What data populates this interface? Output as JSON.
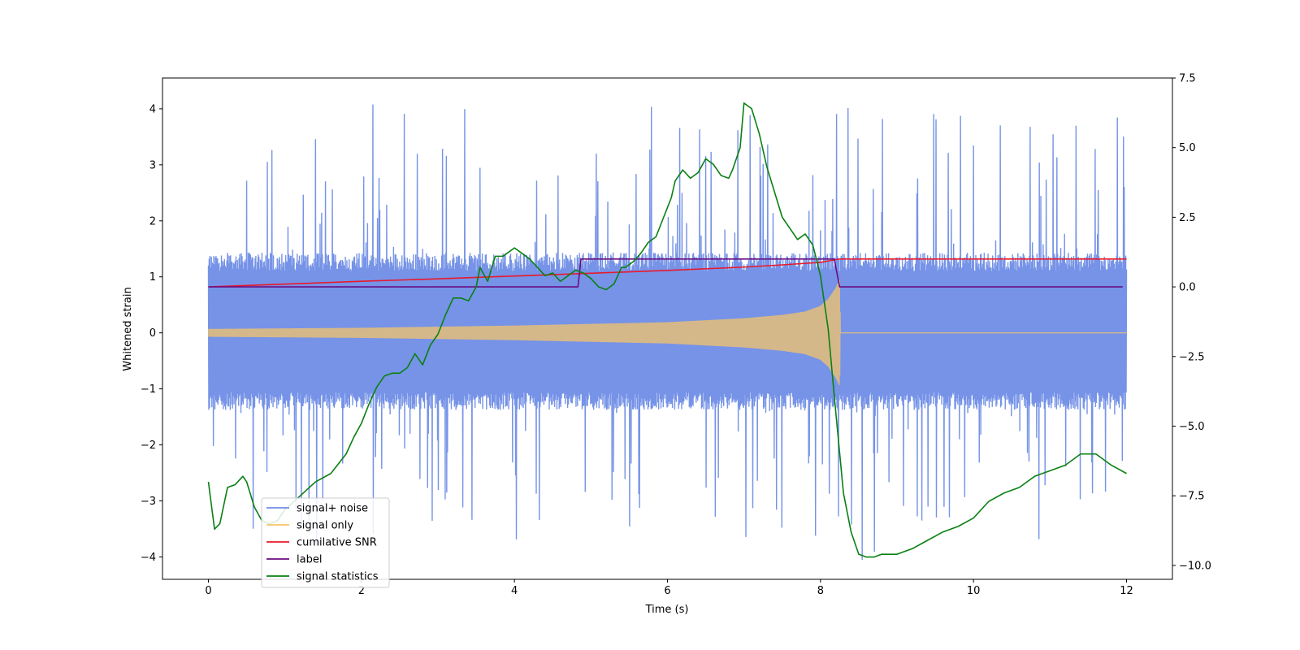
{
  "chart_data": {
    "type": "line",
    "title": "",
    "xlabel": "Time (s)",
    "ylabel": "Whitened strain",
    "xlim": [
      -0.6,
      12.6
    ],
    "ylim": [
      -4.4,
      4.55
    ],
    "y2lim": [
      -10.5,
      7.5
    ],
    "x_ticks": [
      0,
      2,
      4,
      6,
      8,
      10,
      12
    ],
    "y_ticks": [
      -4,
      -3,
      -2,
      -1,
      0,
      1,
      2,
      3,
      4
    ],
    "y2_ticks": [
      -10.0,
      -7.5,
      -5.0,
      -2.5,
      0.0,
      2.5,
      5.0,
      7.5
    ],
    "legend_location": "lower-left",
    "series": [
      {
        "name": "signal+ noise",
        "color": "#6f8de6",
        "axis": "left",
        "kind": "noise",
        "x_range": [
          0,
          12
        ],
        "band_upper": 1.3,
        "band_lower": -1.25,
        "peak_max": 4.15,
        "peak_min": -4.0
      },
      {
        "name": "signal only",
        "color": "#f5c46a",
        "axis": "left",
        "kind": "chirp",
        "envelope": {
          "x": [
            0,
            1,
            2,
            3,
            4,
            5,
            6,
            7,
            7.5,
            7.8,
            8.0,
            8.1,
            8.2,
            8.25,
            8.26,
            12
          ],
          "amp": [
            0.07,
            0.08,
            0.09,
            0.11,
            0.13,
            0.16,
            0.19,
            0.26,
            0.32,
            0.38,
            0.48,
            0.6,
            0.8,
            0.95,
            0.0,
            0.0
          ]
        }
      },
      {
        "name": "cumilative SNR",
        "color": "#e8192c",
        "axis": "right",
        "x": [
          0,
          1,
          2,
          3,
          4,
          5,
          6,
          7,
          7.5,
          8.0,
          8.2,
          8.25,
          12
        ],
        "y": [
          0.0,
          0.1,
          0.2,
          0.29,
          0.39,
          0.49,
          0.59,
          0.71,
          0.79,
          0.88,
          0.98,
          1.0,
          1.0
        ]
      },
      {
        "name": "label",
        "color": "#6a0d83",
        "axis": "right",
        "x": [
          0,
          4.83,
          4.87,
          8.18,
          8.25,
          11.95
        ],
        "y": [
          0,
          0,
          1,
          1,
          0,
          0
        ]
      },
      {
        "name": "signal statistics",
        "color": "#0a8012",
        "axis": "right",
        "x": [
          0,
          0.08,
          0.15,
          0.25,
          0.35,
          0.45,
          0.5,
          0.6,
          0.7,
          0.8,
          0.9,
          1.0,
          1.2,
          1.4,
          1.6,
          1.8,
          1.9,
          2.0,
          2.1,
          2.2,
          2.3,
          2.4,
          2.5,
          2.6,
          2.7,
          2.8,
          2.9,
          3.0,
          3.1,
          3.2,
          3.3,
          3.4,
          3.5,
          3.55,
          3.65,
          3.75,
          3.85,
          3.9,
          4.0,
          4.1,
          4.2,
          4.3,
          4.4,
          4.5,
          4.6,
          4.7,
          4.8,
          4.9,
          5.0,
          5.1,
          5.2,
          5.3,
          5.4,
          5.45,
          5.55,
          5.65,
          5.75,
          5.85,
          5.95,
          6.05,
          6.1,
          6.2,
          6.3,
          6.4,
          6.5,
          6.6,
          6.7,
          6.8,
          6.85,
          6.95,
          7.0,
          7.1,
          7.2,
          7.3,
          7.4,
          7.5,
          7.6,
          7.7,
          7.8,
          7.9,
          8.0,
          8.1,
          8.2,
          8.3,
          8.4,
          8.5,
          8.6,
          8.7,
          8.8,
          9.0,
          9.2,
          9.4,
          9.6,
          9.8,
          10.0,
          10.2,
          10.4,
          10.6,
          10.8,
          11.0,
          11.2,
          11.4,
          11.6,
          11.8,
          12.0
        ],
        "y": [
          -7.0,
          -8.7,
          -8.5,
          -7.2,
          -7.1,
          -6.8,
          -7.0,
          -7.9,
          -8.4,
          -8.5,
          -8.4,
          -8.0,
          -7.5,
          -7.0,
          -6.7,
          -6.0,
          -5.4,
          -4.9,
          -4.2,
          -3.6,
          -3.2,
          -3.1,
          -3.1,
          -2.9,
          -2.4,
          -2.8,
          -2.1,
          -1.7,
          -1.0,
          -0.4,
          -0.4,
          -0.5,
          0.0,
          0.7,
          0.2,
          1.1,
          1.1,
          1.2,
          1.4,
          1.2,
          1.0,
          0.7,
          0.4,
          0.5,
          0.2,
          0.4,
          0.6,
          0.5,
          0.3,
          0.0,
          -0.1,
          0.1,
          0.7,
          0.7,
          0.9,
          1.2,
          1.6,
          1.8,
          2.5,
          3.2,
          3.8,
          4.2,
          3.9,
          4.1,
          4.6,
          4.4,
          4.0,
          3.9,
          4.2,
          5.0,
          6.6,
          6.4,
          5.5,
          4.3,
          3.4,
          2.5,
          2.1,
          1.7,
          1.9,
          1.5,
          0.4,
          -1.5,
          -4.5,
          -7.4,
          -8.8,
          -9.6,
          -9.7,
          -9.7,
          -9.6,
          -9.6,
          -9.4,
          -9.1,
          -8.8,
          -8.6,
          -8.3,
          -7.7,
          -7.4,
          -7.2,
          -6.8,
          -6.6,
          -6.4,
          -6.0,
          -6.0,
          -6.4,
          -6.7
        ]
      }
    ]
  }
}
